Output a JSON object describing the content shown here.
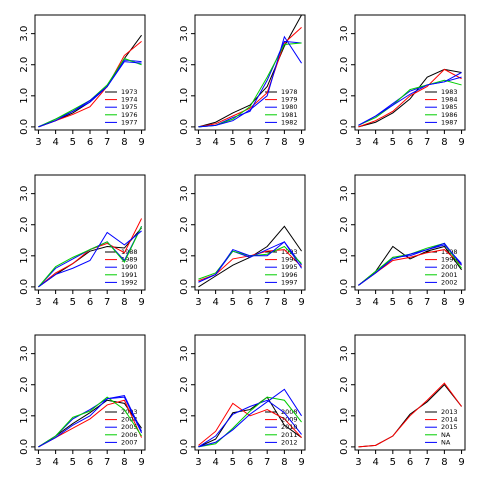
{
  "chart_data": [
    {
      "type": "line",
      "x": [
        3,
        4,
        5,
        6,
        7,
        8,
        9
      ],
      "xlim": [
        2.8,
        9.2
      ],
      "ylim": [
        -0.1,
        3.6
      ],
      "xticks": [
        3,
        4,
        5,
        6,
        7,
        8,
        9
      ],
      "yticks": [
        {
          "value": 0,
          "label": "0.0"
        },
        {
          "value": 1,
          "label": "1.0"
        },
        {
          "value": 2,
          "label": "2.0"
        },
        {
          "value": 3,
          "label": "3.0"
        }
      ],
      "series": [
        {
          "name": "1973",
          "color": "#000000",
          "values": [
            0,
            0.2,
            0.45,
            0.8,
            1.3,
            2.2,
            2.95
          ]
        },
        {
          "name": "1974",
          "color": "#ff0000",
          "values": [
            0,
            0.2,
            0.4,
            0.65,
            1.3,
            2.3,
            2.75
          ]
        },
        {
          "name": "1975",
          "color": "#0000ff",
          "values": [
            0,
            0.25,
            0.5,
            0.8,
            1.3,
            2.15,
            2.1
          ]
        },
        {
          "name": "1976",
          "color": "#00cd00",
          "values": [
            0,
            0.25,
            0.55,
            0.85,
            1.35,
            2.2,
            2.0
          ]
        },
        {
          "name": "1977",
          "color": "#0000ff",
          "values": [
            0,
            0.2,
            0.5,
            0.85,
            1.3,
            2.1,
            2.05
          ]
        }
      ]
    },
    {
      "type": "line",
      "x": [
        3,
        4,
        5,
        6,
        7,
        8,
        9
      ],
      "xlim": [
        2.8,
        9.2
      ],
      "ylim": [
        -0.1,
        3.6
      ],
      "xticks": [
        3,
        4,
        5,
        6,
        7,
        8,
        9
      ],
      "yticks": [
        {
          "value": 0,
          "label": "0.0"
        },
        {
          "value": 1,
          "label": "1.0"
        },
        {
          "value": 2,
          "label": "2.0"
        },
        {
          "value": 3,
          "label": "3.0"
        }
      ],
      "series": [
        {
          "name": "1978",
          "color": "#000000",
          "values": [
            0,
            0.15,
            0.45,
            0.7,
            1.3,
            2.6,
            3.6
          ]
        },
        {
          "name": "1979",
          "color": "#ff0000",
          "values": [
            0,
            0.1,
            0.35,
            0.6,
            1.1,
            2.7,
            3.2
          ]
        },
        {
          "name": "1980",
          "color": "#0000ff",
          "values": [
            0,
            0.05,
            0.3,
            0.5,
            1.5,
            2.75,
            2.7
          ]
        },
        {
          "name": "1981",
          "color": "#00cd00",
          "values": [
            0,
            0.05,
            0.25,
            0.65,
            1.6,
            2.65,
            2.7
          ]
        },
        {
          "name": "1982",
          "color": "#0000ff",
          "values": [
            0,
            0.05,
            0.2,
            0.55,
            1.0,
            2.9,
            2.05
          ]
        }
      ]
    },
    {
      "type": "line",
      "x": [
        3,
        4,
        5,
        6,
        7,
        8,
        9
      ],
      "xlim": [
        2.8,
        9.2
      ],
      "ylim": [
        -0.1,
        3.6
      ],
      "xticks": [
        3,
        4,
        5,
        6,
        7,
        8,
        9
      ],
      "yticks": [
        {
          "value": 0,
          "label": "0.0"
        },
        {
          "value": 1,
          "label": "1.0"
        },
        {
          "value": 2,
          "label": "2.0"
        },
        {
          "value": 3,
          "label": "3.0"
        }
      ],
      "series": [
        {
          "name": "1983",
          "color": "#000000",
          "values": [
            0,
            0.15,
            0.45,
            0.9,
            1.6,
            1.85,
            1.75
          ]
        },
        {
          "name": "1984",
          "color": "#ff0000",
          "values": [
            0,
            0.2,
            0.5,
            1.0,
            1.3,
            1.85,
            1.55
          ]
        },
        {
          "name": "1985",
          "color": "#0000ff",
          "values": [
            0.05,
            0.35,
            0.75,
            1.15,
            1.35,
            1.45,
            1.6
          ]
        },
        {
          "name": "1986",
          "color": "#00cd00",
          "values": [
            0.05,
            0.3,
            0.7,
            1.2,
            1.35,
            1.5,
            1.35
          ]
        },
        {
          "name": "1987",
          "color": "#0000ff",
          "values": [
            0.05,
            0.35,
            0.7,
            1.05,
            1.35,
            1.45,
            1.75
          ]
        }
      ]
    },
    {
      "type": "line",
      "x": [
        3,
        4,
        5,
        6,
        7,
        8,
        9
      ],
      "xlim": [
        2.8,
        9.2
      ],
      "ylim": [
        -0.1,
        3.6
      ],
      "xticks": [
        3,
        4,
        5,
        6,
        7,
        8,
        9
      ],
      "yticks": [
        {
          "value": 0,
          "label": "0.0"
        },
        {
          "value": 1,
          "label": "1.0"
        },
        {
          "value": 2,
          "label": "2.0"
        },
        {
          "value": 3,
          "label": "3.0"
        }
      ],
      "series": [
        {
          "name": "1988",
          "color": "#000000",
          "values": [
            0,
            0.4,
            0.75,
            1.15,
            1.3,
            1.25,
            1.9
          ]
        },
        {
          "name": "1989",
          "color": "#ff0000",
          "values": [
            0,
            0.45,
            0.75,
            1.2,
            1.4,
            1.1,
            2.2
          ]
        },
        {
          "name": "1990",
          "color": "#0000ff",
          "values": [
            0,
            0.6,
            0.9,
            1.2,
            1.45,
            0.85,
            1.95
          ]
        },
        {
          "name": "1991",
          "color": "#00cd00",
          "values": [
            0,
            0.65,
            0.95,
            1.2,
            1.45,
            0.8,
            1.95
          ]
        },
        {
          "name": "1992",
          "color": "#0000ff",
          "values": [
            0,
            0.4,
            0.6,
            0.85,
            1.75,
            1.35,
            1.8
          ]
        }
      ]
    },
    {
      "type": "line",
      "x": [
        3,
        4,
        5,
        6,
        7,
        8,
        9
      ],
      "xlim": [
        2.8,
        9.2
      ],
      "ylim": [
        -0.1,
        3.6
      ],
      "xticks": [
        3,
        4,
        5,
        6,
        7,
        8,
        9
      ],
      "yticks": [
        {
          "value": 0,
          "label": "0.0"
        },
        {
          "value": 1,
          "label": "1.0"
        },
        {
          "value": 2,
          "label": "2.0"
        },
        {
          "value": 3,
          "label": "3.0"
        }
      ],
      "series": [
        {
          "name": "1993",
          "color": "#000000",
          "values": [
            0,
            0.35,
            0.7,
            0.95,
            1.3,
            1.95,
            1.15
          ]
        },
        {
          "name": "1994",
          "color": "#ff0000",
          "values": [
            0.2,
            0.4,
            0.9,
            1.0,
            1.15,
            1.2,
            0.65
          ]
        },
        {
          "name": "1995",
          "color": "#0000ff",
          "values": [
            0.15,
            0.4,
            1.15,
            0.95,
            1.2,
            1.45,
            0.7
          ]
        },
        {
          "name": "1996",
          "color": "#00cd00",
          "values": [
            0.25,
            0.45,
            1.15,
            1.0,
            1.05,
            1.3,
            0.75
          ]
        },
        {
          "name": "1997",
          "color": "#0000ff",
          "values": [
            0.15,
            0.4,
            1.2,
            1.0,
            1.0,
            1.45,
            0.6
          ]
        }
      ]
    },
    {
      "type": "line",
      "x": [
        3,
        4,
        5,
        6,
        7,
        8,
        9
      ],
      "xlim": [
        2.8,
        9.2
      ],
      "ylim": [
        -0.1,
        3.6
      ],
      "xticks": [
        3,
        4,
        5,
        6,
        7,
        8,
        9
      ],
      "yticks": [
        {
          "value": 0,
          "label": "0.0"
        },
        {
          "value": 1,
          "label": "1.0"
        },
        {
          "value": 2,
          "label": "2.0"
        },
        {
          "value": 3,
          "label": "3.0"
        }
      ],
      "series": [
        {
          "name": "1998",
          "color": "#000000",
          "values": [
            0.05,
            0.5,
            1.3,
            0.9,
            1.15,
            1.3,
            0.55
          ]
        },
        {
          "name": "1999",
          "color": "#ff0000",
          "values": [
            0.05,
            0.45,
            0.85,
            0.95,
            1.1,
            1.2,
            0.7
          ]
        },
        {
          "name": "2000",
          "color": "#0000ff",
          "values": [
            0.05,
            0.45,
            0.95,
            1.0,
            1.2,
            1.35,
            0.75
          ]
        },
        {
          "name": "2001",
          "color": "#00cd00",
          "values": [
            0.05,
            0.5,
            0.95,
            1.05,
            1.25,
            1.4,
            0.6
          ]
        },
        {
          "name": "2002",
          "color": "#0000ff",
          "values": [
            0.05,
            0.45,
            0.9,
            1.05,
            1.2,
            1.4,
            0.7
          ]
        }
      ]
    },
    {
      "type": "line",
      "x": [
        3,
        4,
        5,
        6,
        7,
        8,
        9
      ],
      "xlim": [
        2.8,
        9.2
      ],
      "ylim": [
        -0.1,
        3.6
      ],
      "xticks": [
        3,
        4,
        5,
        6,
        7,
        8,
        9
      ],
      "yticks": [
        {
          "value": 0,
          "label": "0.0"
        },
        {
          "value": 1,
          "label": "1.0"
        },
        {
          "value": 2,
          "label": "2.0"
        },
        {
          "value": 3,
          "label": "3.0"
        }
      ],
      "series": [
        {
          "name": "2003",
          "color": "#000000",
          "values": [
            0,
            0.35,
            0.75,
            1.1,
            1.5,
            1.4,
            0.6
          ]
        },
        {
          "name": "2004",
          "color": "#ff0000",
          "values": [
            0,
            0.3,
            0.6,
            0.9,
            1.35,
            1.5,
            0.3
          ]
        },
        {
          "name": "2005",
          "color": "#0000ff",
          "values": [
            0,
            0.35,
            0.9,
            1.2,
            1.55,
            1.6,
            0.45
          ]
        },
        {
          "name": "2006",
          "color": "#00cd00",
          "values": [
            0,
            0.35,
            0.95,
            1.15,
            1.6,
            1.2,
            0.35
          ]
        },
        {
          "name": "2007",
          "color": "#0000ff",
          "values": [
            0,
            0.3,
            0.7,
            1.0,
            1.55,
            1.65,
            0.5
          ]
        }
      ]
    },
    {
      "type": "line",
      "x": [
        3,
        4,
        5,
        6,
        7,
        8,
        9
      ],
      "xlim": [
        2.8,
        9.2
      ],
      "ylim": [
        -0.1,
        3.6
      ],
      "xticks": [
        3,
        4,
        5,
        6,
        7,
        8,
        9
      ],
      "yticks": [
        {
          "value": 0,
          "label": "0.0"
        },
        {
          "value": 1,
          "label": "1.0"
        },
        {
          "value": 2,
          "label": "2.0"
        },
        {
          "value": 3,
          "label": "3.0"
        }
      ],
      "series": [
        {
          "name": "2008",
          "color": "#000000",
          "values": [
            0,
            0.25,
            1.1,
            1.2,
            1.6,
            0.7,
            0.3
          ]
        },
        {
          "name": "2009",
          "color": "#ff0000",
          "values": [
            0.05,
            0.5,
            1.4,
            1.0,
            1.2,
            0.9,
            0.3
          ]
        },
        {
          "name": "2010",
          "color": "#0000ff",
          "values": [
            0,
            0.35,
            1.05,
            1.3,
            1.5,
            1.1,
            0.4
          ]
        },
        {
          "name": "2011",
          "color": "#00cd00",
          "values": [
            0,
            0.1,
            0.6,
            1.15,
            1.6,
            1.5,
            0.8
          ]
        },
        {
          "name": "2012",
          "color": "#0000ff",
          "values": [
            0,
            0.15,
            0.55,
            1.05,
            1.45,
            1.85,
            1.0
          ]
        }
      ]
    },
    {
      "type": "line",
      "x": [
        3,
        4,
        5,
        6,
        7,
        8,
        9
      ],
      "xlim": [
        2.8,
        9.2
      ],
      "ylim": [
        -0.1,
        3.6
      ],
      "xticks": [
        3,
        4,
        5,
        6,
        7,
        8,
        9
      ],
      "yticks": [
        {
          "value": 0,
          "label": "0.0"
        },
        {
          "value": 1,
          "label": "1.0"
        },
        {
          "value": 2,
          "label": "2.0"
        },
        {
          "value": 3,
          "label": "3.0"
        }
      ],
      "series": [
        {
          "name": "2013",
          "color": "#000000",
          "values": [
            0,
            0.05,
            0.35,
            1.05,
            1.45,
            2.0,
            1.3
          ]
        },
        {
          "name": "2014",
          "color": "#ff0000",
          "values": [
            0,
            0.05,
            0.35,
            1.0,
            1.5,
            2.05,
            1.3
          ]
        },
        {
          "name": "2015",
          "color": "#0000ff",
          "values": [
            null,
            null,
            null,
            null,
            null,
            null,
            null
          ]
        },
        {
          "name": "NA",
          "color": "#00cd00",
          "values": [
            null,
            null,
            null,
            null,
            null,
            null,
            null
          ]
        },
        {
          "name": "NA",
          "color": "#0000ff",
          "values": [
            null,
            null,
            null,
            null,
            null,
            null,
            null
          ]
        }
      ]
    }
  ]
}
